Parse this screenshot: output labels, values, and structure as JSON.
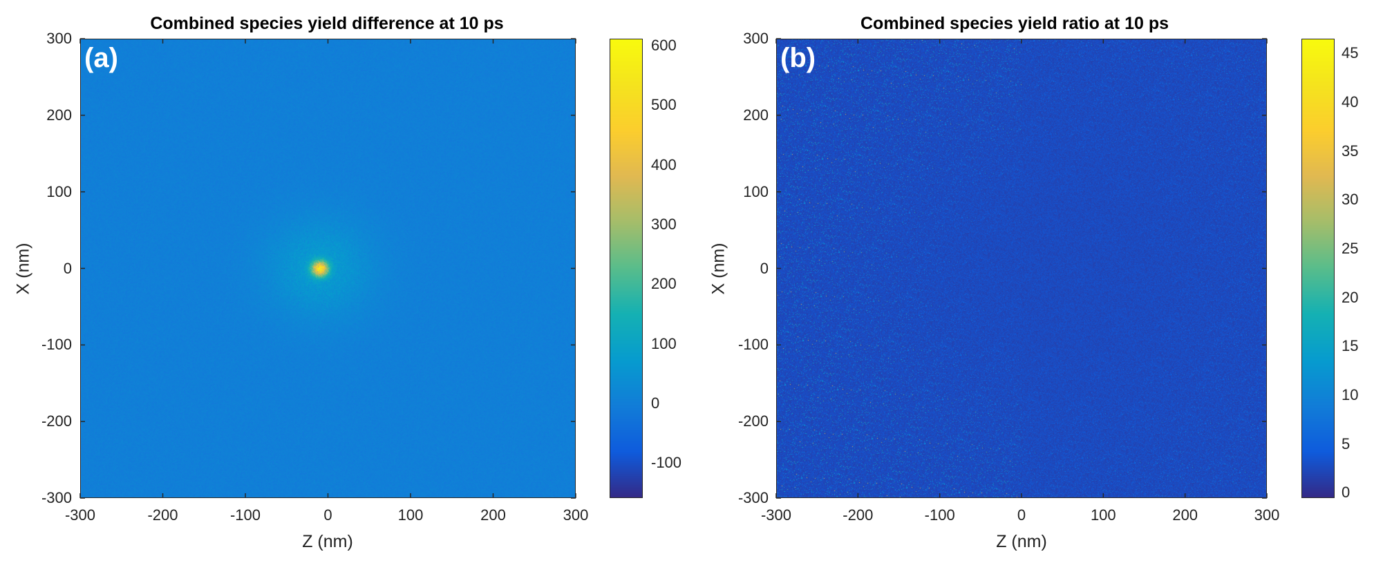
{
  "chart_data": [
    {
      "type": "heatmap",
      "panel": "(a)",
      "title": "Combined species yield difference at 10 ps",
      "xlabel": "Z (nm)",
      "ylabel": "X (nm)",
      "xlim": [
        -300,
        300
      ],
      "ylim": [
        -300,
        300
      ],
      "xticks": [
        "-300",
        "-200",
        "-100",
        "0",
        "100",
        "200",
        "300"
      ],
      "yticks": [
        "300",
        "200",
        "100",
        "0",
        "-100",
        "-200",
        "-300"
      ],
      "colorbar": {
        "min": -160,
        "max": 610,
        "ticks": [
          "600",
          "500",
          "400",
          "300",
          "200",
          "100",
          "0",
          "-100"
        ]
      },
      "background_value": 0,
      "hotspot": {
        "z": -10,
        "x": 0,
        "peak": 480,
        "halo": 70
      }
    },
    {
      "type": "heatmap",
      "panel": "(b)",
      "title": "Combined species yield ratio at 10 ps",
      "xlabel": "Z (nm)",
      "ylabel": "X (nm)",
      "xlim": [
        -300,
        300
      ],
      "ylim": [
        -300,
        300
      ],
      "xticks": [
        "-300",
        "-200",
        "-100",
        "0",
        "100",
        "200",
        "300"
      ],
      "yticks": [
        "300",
        "200",
        "100",
        "0",
        "-100",
        "-200",
        "-300"
      ],
      "colorbar": {
        "min": 0,
        "max": 47,
        "ticks": [
          "45",
          "40",
          "35",
          "30",
          "25",
          "20",
          "15",
          "10",
          "5",
          "0"
        ]
      },
      "background_value": 2,
      "noisy_region": "Z < 0",
      "quiet_region_center": {
        "z": 50,
        "x": 0
      }
    }
  ]
}
